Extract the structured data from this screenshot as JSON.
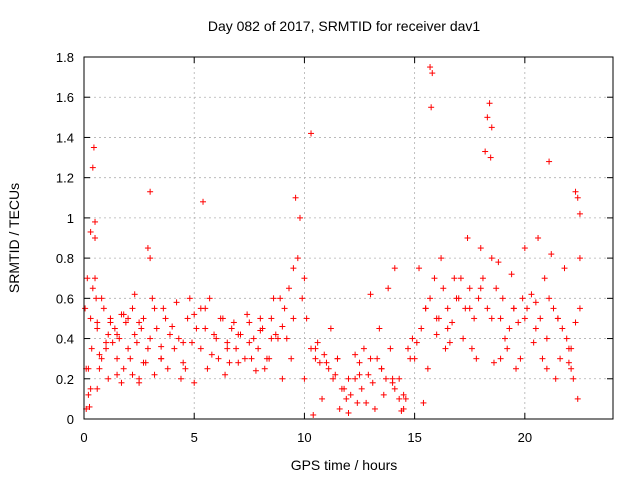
{
  "chart_data": {
    "type": "scatter",
    "title": "Day 082 of 2017, SRMTID for receiver dav1",
    "xlabel": "GPS time / hours",
    "ylabel": "SRMTID / TECUs",
    "xlim": [
      0,
      24
    ],
    "ylim": [
      0,
      1.8
    ],
    "x_ticks": [
      0,
      5,
      10,
      15,
      20
    ],
    "x_tick_labels": [
      "0",
      "5",
      "10",
      "15",
      "20"
    ],
    "y_ticks": [
      0,
      0.2,
      0.4,
      0.6,
      0.8,
      1,
      1.2,
      1.4,
      1.6,
      1.8
    ],
    "y_tick_labels": [
      "0",
      "0.2",
      "0.4",
      "0.6",
      "0.8",
      "1",
      "1.2",
      "1.4",
      "1.6",
      "1.8"
    ],
    "grid": true,
    "marker": "plus",
    "color": "#ff0000",
    "x": [
      0.05,
      0.1,
      0.15,
      0.2,
      0.25,
      0.3,
      0.35,
      0.4,
      0.45,
      0.5,
      0.55,
      0.6,
      0.7,
      0.8,
      0.9,
      1.0,
      1.1,
      1.2,
      1.3,
      1.4,
      1.5,
      1.6,
      1.7,
      1.8,
      1.9,
      2.0,
      2.1,
      2.2,
      2.3,
      2.4,
      2.5,
      2.6,
      2.7,
      2.8,
      2.9,
      3.0,
      3.1,
      3.2,
      3.3,
      3.5,
      3.7,
      3.9,
      4.1,
      4.3,
      4.5,
      4.7,
      4.9,
      5.1,
      5.3,
      5.5,
      5.7,
      5.9,
      6.1,
      6.3,
      6.5,
      6.7,
      6.9,
      7.1,
      7.3,
      7.5,
      7.7,
      7.9,
      8.1,
      8.3,
      8.5,
      8.7,
      8.9,
      9.1,
      9.3,
      9.5,
      9.7,
      9.9,
      10.1,
      10.3,
      10.5,
      10.7,
      10.9,
      11.1,
      11.3,
      11.5,
      11.7,
      11.9,
      12.1,
      12.3,
      12.5,
      12.7,
      12.9,
      13.1,
      13.3,
      13.5,
      13.7,
      13.9,
      14.1,
      14.3,
      14.5,
      14.7,
      14.9,
      15.1,
      15.3,
      15.5,
      15.7,
      15.9,
      16.1,
      16.3,
      16.5,
      16.7,
      16.9,
      17.1,
      17.3,
      17.5,
      17.7,
      17.9,
      18.1,
      18.3,
      18.5,
      18.7,
      18.9,
      19.1,
      19.3,
      19.5,
      19.7,
      19.9,
      20.1,
      20.3,
      20.5,
      20.7,
      20.9,
      21.1,
      21.3,
      21.5,
      21.7,
      21.9,
      22.1,
      22.3,
      22.5,
      0.2,
      0.4,
      0.6,
      1.0,
      1.5,
      2.0,
      2.5,
      3.0,
      3.5,
      4.0,
      4.5,
      5.0,
      5.5,
      6.0,
      6.5,
      7.0,
      7.5,
      8.0,
      8.5,
      9.0,
      9.5,
      10.0,
      10.5,
      11.0,
      11.5,
      12.0,
      12.5,
      13.0,
      13.5,
      14.0,
      14.5,
      15.0,
      15.5,
      16.0,
      16.5,
      17.0,
      17.5,
      18.0,
      18.5,
      19.0,
      19.5,
      20.0,
      20.5,
      21.0,
      21.5,
      22.0,
      22.5,
      0.3,
      0.5,
      2.9,
      3.0,
      5.4,
      9.6,
      9.8,
      10.3,
      15.7,
      15.8,
      15.75,
      18.3,
      18.4,
      18.45,
      18.5,
      18.2,
      21.1,
      22.3,
      22.4,
      22.5,
      13.0,
      11.2,
      12.3,
      14.1,
      14.3,
      14.4,
      12.0,
      13.8,
      0.5,
      0.8,
      1.2,
      1.8,
      2.3,
      3.6,
      4.2,
      4.8,
      5.3,
      6.2,
      6.8,
      7.4,
      8.0,
      8.6,
      9.2,
      10.6,
      11.4,
      12.6,
      13.4,
      15.2,
      16.2,
      16.8,
      17.4,
      18.0,
      18.8,
      19.4,
      20.0,
      20.6,
      21.2,
      21.8,
      22.2,
      0.3,
      0.7,
      1.1,
      1.7,
      2.2,
      2.7,
      3.2,
      3.8,
      4.4,
      5.0,
      5.6,
      6.4,
      7.0,
      7.6,
      8.2,
      8.8,
      9.4,
      10.0,
      10.8,
      11.6,
      12.4,
      13.2,
      14.0,
      14.8,
      15.6,
      16.4,
      17.2,
      17.8,
      18.6,
      19.2,
      19.8,
      20.4,
      21.0,
      21.6,
      22.0,
      22.4,
      0.1,
      0.6,
      1.5,
      2.5,
      3.5,
      4.6,
      5.8,
      6.6,
      7.8,
      8.4,
      9.0,
      10.4,
      11.8,
      12.8,
      13.6,
      14.6,
      15.4,
      16.0,
      16.6,
      17.6,
      18.9,
      19.6,
      20.8,
      21.4,
      22.1
    ],
    "y": [
      0.55,
      0.25,
      0.7,
      0.12,
      0.06,
      0.5,
      0.35,
      1.25,
      1.35,
      0.9,
      0.6,
      0.45,
      0.32,
      0.3,
      0.55,
      0.35,
      0.42,
      0.5,
      0.38,
      0.45,
      0.3,
      0.4,
      0.52,
      0.25,
      0.48,
      0.35,
      0.3,
      0.55,
      0.42,
      0.38,
      0.2,
      0.45,
      0.5,
      0.28,
      0.35,
      0.8,
      0.6,
      0.55,
      0.45,
      0.3,
      0.5,
      0.42,
      0.35,
      0.4,
      0.28,
      0.5,
      0.38,
      0.45,
      0.35,
      0.55,
      0.6,
      0.42,
      0.3,
      0.5,
      0.38,
      0.45,
      0.35,
      0.42,
      0.3,
      0.48,
      0.4,
      0.35,
      0.45,
      0.3,
      0.5,
      0.42,
      0.6,
      0.55,
      0.65,
      0.75,
      0.8,
      0.6,
      0.5,
      0.35,
      0.3,
      0.28,
      0.32,
      0.25,
      0.2,
      0.3,
      0.15,
      0.1,
      0.12,
      0.2,
      0.28,
      0.35,
      0.22,
      0.18,
      0.3,
      0.25,
      0.2,
      0.35,
      0.15,
      0.1,
      0.05,
      0.35,
      0.4,
      0.38,
      0.45,
      0.55,
      0.6,
      0.7,
      0.5,
      0.65,
      0.55,
      0.48,
      0.6,
      0.7,
      0.55,
      0.65,
      0.5,
      0.6,
      0.7,
      0.55,
      0.8,
      0.65,
      0.5,
      0.4,
      0.45,
      0.55,
      0.48,
      0.6,
      0.55,
      0.62,
      0.58,
      0.5,
      0.7,
      0.6,
      0.55,
      0.5,
      0.45,
      0.4,
      0.35,
      0.48,
      0.55,
      0.25,
      0.65,
      0.48,
      0.38,
      0.42,
      0.5,
      0.48,
      0.4,
      0.36,
      0.46,
      0.38,
      0.52,
      0.45,
      0.4,
      0.35,
      0.42,
      0.38,
      0.44,
      0.4,
      0.46,
      0.5,
      0.7,
      0.35,
      0.28,
      0.3,
      0.2,
      0.22,
      0.3,
      0.25,
      0.18,
      0.12,
      0.3,
      0.55,
      0.5,
      0.45,
      0.6,
      0.55,
      0.65,
      0.5,
      0.6,
      0.55,
      0.5,
      0.45,
      0.4,
      0.5,
      0.35,
      1.02,
      0.93,
      0.98,
      0.85,
      1.13,
      1.08,
      1.1,
      1.0,
      1.42,
      1.75,
      1.72,
      1.55,
      1.5,
      1.57,
      1.3,
      1.45,
      1.33,
      1.28,
      1.13,
      1.1,
      0.8,
      0.62,
      0.45,
      0.32,
      0.75,
      0.2,
      0.04,
      0.03,
      0.65,
      0.7,
      0.6,
      0.48,
      0.52,
      0.62,
      0.55,
      0.58,
      0.6,
      0.55,
      0.5,
      0.48,
      0.52,
      0.5,
      0.6,
      0.4,
      0.38,
      0.22,
      0.15,
      0.45,
      0.75,
      0.8,
      0.7,
      0.9,
      0.85,
      0.78,
      0.72,
      0.85,
      0.9,
      0.82,
      0.75,
      0.2,
      0.15,
      0.25,
      0.2,
      0.18,
      0.22,
      0.28,
      0.22,
      0.25,
      0.2,
      0.18,
      0.25,
      0.22,
      0.28,
      0.3,
      0.25,
      0.4,
      0.3,
      0.2,
      0.1,
      0.05,
      0.08,
      0.05,
      0.2,
      0.3,
      0.25,
      0.35,
      0.4,
      0.3,
      0.28,
      0.35,
      0.3,
      0.38,
      0.25,
      0.3,
      0.28,
      0.1,
      0.05,
      0.15,
      0.22,
      0.18,
      0.3,
      0.25,
      0.32,
      0.28,
      0.24,
      0.3,
      0.2,
      0.02,
      0.15,
      0.08,
      0.12,
      0.1,
      0.08,
      0.42,
      0.38,
      0.35,
      0.3,
      0.25,
      0.3,
      0.2,
      0.25
    ]
  }
}
